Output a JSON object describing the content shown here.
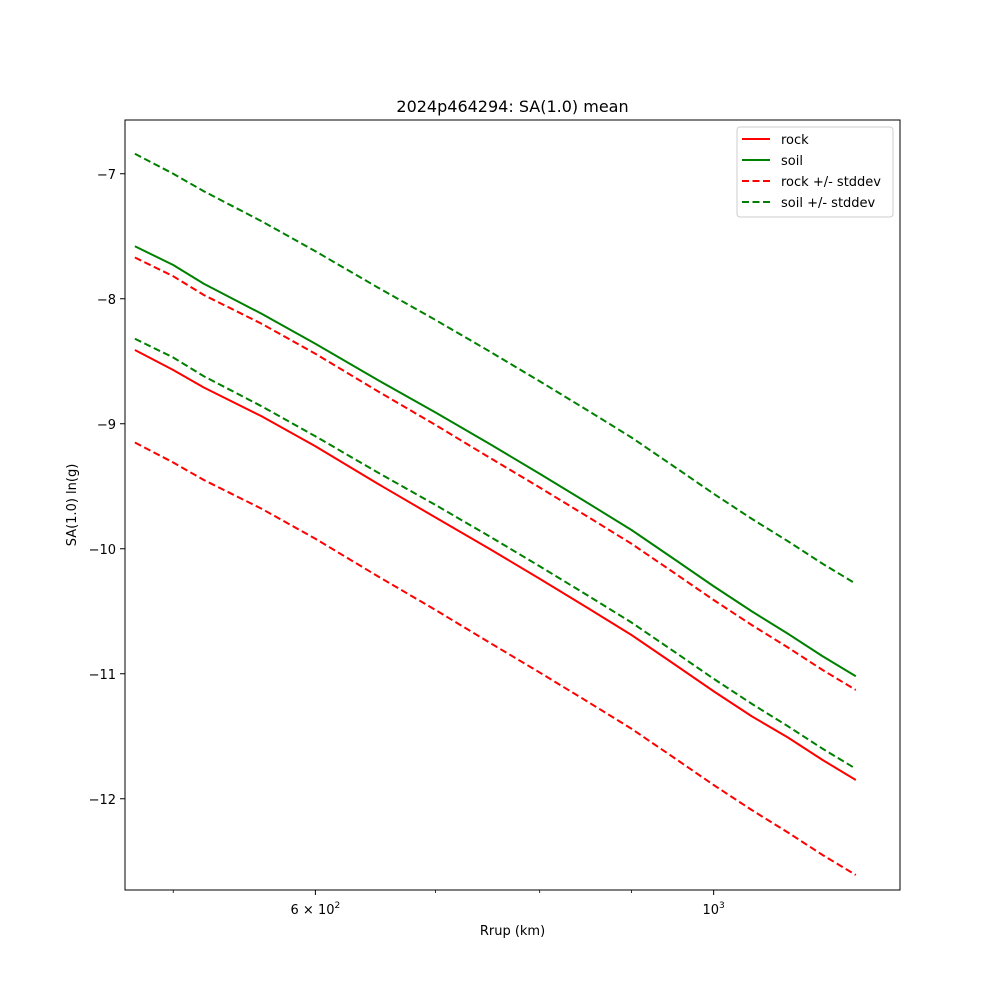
{
  "chart_data": {
    "type": "line",
    "title": "2024p464294: SA(1.0) mean",
    "xlabel": "Rrup (km)",
    "ylabel": "SA(1.0) ln(g)",
    "x_scale": "log",
    "xlim": [
      470,
      1270
    ],
    "ylim": [
      -12.73,
      -6.57
    ],
    "x_ticks": [
      {
        "value": 600,
        "label_base": "6 × 10",
        "label_exp": "2"
      },
      {
        "value": 1000,
        "label_base": "10",
        "label_exp": "3"
      }
    ],
    "x_minor_ticks": [
      500,
      700,
      800,
      900
    ],
    "y_ticks": [
      {
        "value": -7,
        "label": "−7"
      },
      {
        "value": -8,
        "label": "−8"
      },
      {
        "value": -9,
        "label": "−9"
      },
      {
        "value": -10,
        "label": "−10"
      },
      {
        "value": -11,
        "label": "−11"
      },
      {
        "value": -12,
        "label": "−12"
      }
    ],
    "grid": false,
    "legend_position": "top-right",
    "x": [
      476,
      500,
      520,
      560,
      600,
      650,
      700,
      750,
      800,
      850,
      900,
      950,
      1000,
      1050,
      1100,
      1150,
      1200
    ],
    "series": [
      {
        "name": "rock",
        "color": "#ff0000",
        "dash": "solid",
        "values": [
          -8.41,
          -8.57,
          -8.71,
          -8.94,
          -9.18,
          -9.48,
          -9.75,
          -10.0,
          -10.24,
          -10.47,
          -10.69,
          -10.92,
          -11.14,
          -11.34,
          -11.51,
          -11.69,
          -11.85
        ]
      },
      {
        "name": "soil",
        "color": "#008000",
        "dash": "solid",
        "values": [
          -7.58,
          -7.73,
          -7.88,
          -8.12,
          -8.36,
          -8.65,
          -8.91,
          -9.16,
          -9.4,
          -9.63,
          -9.85,
          -10.08,
          -10.3,
          -10.5,
          -10.68,
          -10.86,
          -11.02
        ]
      },
      {
        "name": "rock +/- stddev",
        "color": "#ff0000",
        "dash": "dashed",
        "values": [
          -7.67,
          -7.82,
          -7.97,
          -8.2,
          -8.44,
          -8.74,
          -9.01,
          -9.27,
          -9.51,
          -9.74,
          -9.96,
          -10.19,
          -10.41,
          -10.61,
          -10.79,
          -10.97,
          -11.13
        ]
      },
      {
        "name": "rock +/- stddev",
        "color": "#ff0000",
        "dash": "dashed",
        "legend": false,
        "values": [
          -9.15,
          -9.31,
          -9.45,
          -9.68,
          -9.92,
          -10.22,
          -10.49,
          -10.75,
          -10.99,
          -11.22,
          -11.44,
          -11.67,
          -11.89,
          -12.09,
          -12.27,
          -12.45,
          -12.61
        ]
      },
      {
        "name": "soil +/- stddev",
        "color": "#008000",
        "dash": "dashed",
        "values": [
          -6.84,
          -7.0,
          -7.14,
          -7.38,
          -7.62,
          -7.91,
          -8.17,
          -8.42,
          -8.66,
          -8.89,
          -9.11,
          -9.34,
          -9.56,
          -9.76,
          -9.94,
          -10.12,
          -10.28
        ]
      },
      {
        "name": "soil +/- stddev",
        "color": "#008000",
        "dash": "dashed",
        "legend": false,
        "values": [
          -8.32,
          -8.47,
          -8.62,
          -8.86,
          -9.1,
          -9.39,
          -9.65,
          -9.9,
          -10.14,
          -10.37,
          -10.59,
          -10.82,
          -11.04,
          -11.24,
          -11.42,
          -11.6,
          -11.76
        ]
      }
    ]
  }
}
